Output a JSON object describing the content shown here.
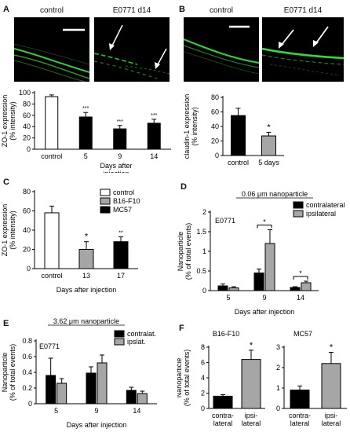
{
  "panels": {
    "A": {
      "label": "A",
      "img_left": "control",
      "img_right": "E0771 d14"
    },
    "B": {
      "label": "B",
      "img_left": "control",
      "img_right": "E0771 d14"
    },
    "C": {
      "label": "C"
    },
    "D": {
      "label": "D"
    },
    "E": {
      "label": "E"
    },
    "F": {
      "label": "F"
    }
  },
  "colors": {
    "black": "#000000",
    "gray": "#a6a6a6",
    "white": "#ffffff",
    "micro_green": "#38e63a"
  },
  "chart_data": [
    {
      "id": "A",
      "type": "bar",
      "categories": [
        "control",
        "5",
        "9",
        "14"
      ],
      "values": [
        93,
        57,
        36,
        46
      ],
      "errors": [
        3,
        8,
        6,
        7
      ],
      "fills": [
        "white",
        "black",
        "black",
        "black"
      ],
      "significance": [
        "",
        "***",
        "***",
        "***"
      ],
      "ylabel": "ZO-1 expression\n(% intensity)",
      "xlabel": "Days after\ninjection",
      "ylim": [
        0,
        100
      ],
      "yticks": [
        0,
        20,
        40,
        60,
        80,
        100
      ]
    },
    {
      "id": "B",
      "type": "bar",
      "categories": [
        "control",
        "5 days"
      ],
      "values": [
        55,
        27
      ],
      "errors": [
        10,
        5
      ],
      "fills": [
        "black",
        "gray"
      ],
      "significance": [
        "",
        "*"
      ],
      "ylabel": "claudin-1 expression\n(% intensity)",
      "xlabel": "",
      "ylim": [
        0,
        80
      ],
      "yticks": [
        0,
        20,
        40,
        60,
        80
      ]
    },
    {
      "id": "C",
      "type": "bar",
      "categories": [
        "control",
        "13",
        "17"
      ],
      "values": [
        58,
        20,
        28
      ],
      "errors": [
        7,
        8,
        5
      ],
      "fills": [
        "white",
        "gray",
        "black"
      ],
      "significance": [
        "",
        "*",
        "**"
      ],
      "ylabel": "ZO-1 expression\n(% intensity)",
      "xlabel": "Days after injection",
      "ylim": [
        0,
        80
      ],
      "yticks": [
        0,
        20,
        40,
        60,
        80
      ],
      "legend": [
        {
          "name": "control",
          "fill": "white"
        },
        {
          "name": "B16-F10",
          "fill": "gray"
        },
        {
          "name": "MC57",
          "fill": "black"
        }
      ]
    },
    {
      "id": "D",
      "type": "bar",
      "title": "0.06 μm nanoparticle",
      "annotation": "E0771",
      "categories": [
        "5",
        "9",
        "14"
      ],
      "series": [
        {
          "name": "contralateral",
          "fill": "black",
          "values": [
            0.12,
            0.45,
            0.08
          ],
          "errors": [
            0.05,
            0.1,
            0.02
          ]
        },
        {
          "name": "ipsilateral",
          "fill": "gray",
          "values": [
            0.07,
            1.2,
            0.2
          ],
          "errors": [
            0.03,
            0.35,
            0.04
          ]
        }
      ],
      "significance": [
        "",
        "*",
        "*"
      ],
      "ylabel": "Nanoparticle\n(% of total events)",
      "xlabel": "Days after injection",
      "ylim": [
        0,
        2
      ],
      "yticks": [
        0,
        0.5,
        1,
        1.5,
        2
      ],
      "ytick_labels": [
        "0",
        "0.5",
        "1",
        "1.5",
        "2"
      ]
    },
    {
      "id": "E",
      "type": "bar",
      "title": "3.62 μm nanoparticle",
      "annotation": "E0771",
      "categories": [
        "5",
        "9",
        "14"
      ],
      "series": [
        {
          "name": "contralat.",
          "fill": "black",
          "values": [
            0.36,
            0.39,
            0.17
          ],
          "errors": [
            0.22,
            0.08,
            0.04
          ]
        },
        {
          "name": "ipslat.",
          "fill": "gray",
          "values": [
            0.26,
            0.52,
            0.13
          ],
          "errors": [
            0.06,
            0.1,
            0.03
          ]
        }
      ],
      "ylabel": "Nanoparticle\n(% of total events)",
      "xlabel": "Days after injection",
      "ylim": [
        0,
        0.8
      ],
      "yticks": [
        0,
        0.2,
        0.4,
        0.6,
        0.8
      ],
      "ytick_labels": [
        "0",
        "0.2",
        "0.4",
        "0.6",
        "0.8"
      ]
    },
    {
      "id": "F1",
      "type": "bar",
      "title": "B16-F10",
      "categories": [
        "contra-\nlateral",
        "ipsi-\nlateral"
      ],
      "values": [
        1.6,
        6.4
      ],
      "errors": [
        0.2,
        1.2
      ],
      "fills": [
        "black",
        "gray"
      ],
      "significance": [
        "",
        "*"
      ],
      "ylabel": "Nanoparticle\n(% of total events)",
      "ylim": [
        0,
        8
      ],
      "yticks": [
        0,
        2,
        4,
        6,
        8
      ]
    },
    {
      "id": "F2",
      "type": "bar",
      "title": "MC57",
      "categories": [
        "contra-\nlateral",
        "ipsi-\nlateral"
      ],
      "values": [
        0.9,
        2.2
      ],
      "errors": [
        0.2,
        0.55
      ],
      "fills": [
        "black",
        "gray"
      ],
      "significance": [
        "",
        "*"
      ],
      "ylim": [
        0,
        3
      ],
      "yticks": [
        0,
        1,
        2,
        3
      ]
    }
  ]
}
